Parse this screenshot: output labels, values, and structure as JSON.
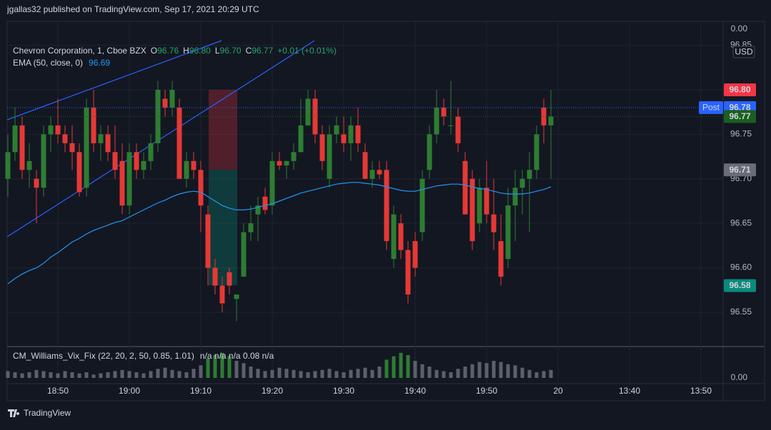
{
  "header": {
    "publisher": "jgallas32 published on TradingView.com, Sep 17, 2021 20:29 UTC"
  },
  "footer": {
    "brand": "TradingView"
  },
  "chart_data": {
    "type": "candlestick",
    "legend": {
      "symbol": "Chevron Corporation, 1, Cboe BZX",
      "o_key": "O",
      "o": "96.76",
      "h_key": "H",
      "h": "96.80",
      "l_key": "L",
      "l": "96.70",
      "c_key": "C",
      "c": "96.77",
      "change": "+0.01 (+0.01%)"
    },
    "currency": "USD",
    "top_label": "0.00",
    "x": [
      -7,
      -6,
      -5,
      -4,
      -3,
      -2,
      -1,
      0,
      1,
      2,
      3,
      4,
      5,
      6,
      7,
      8,
      9,
      10,
      11,
      12,
      13,
      14,
      15,
      16,
      17,
      18,
      19,
      20,
      21,
      22,
      23,
      24,
      25,
      26,
      27,
      28,
      29,
      30,
      31,
      32,
      33,
      34,
      35,
      36,
      37,
      38,
      39,
      40,
      41,
      42,
      43,
      44,
      45,
      46,
      47,
      48,
      49,
      50,
      51,
      52,
      53,
      54,
      55,
      56,
      57,
      58,
      59,
      60,
      61,
      62,
      63,
      64,
      65,
      66,
      67,
      68,
      69
    ],
    "open": [
      96.7,
      96.73,
      96.76,
      96.71,
      96.7,
      96.69,
      96.75,
      96.76,
      96.75,
      96.74,
      96.73,
      96.69,
      96.78,
      96.74,
      96.75,
      96.73,
      96.72,
      96.67,
      96.73,
      96.71,
      96.72,
      96.74,
      96.79,
      96.78,
      96.78,
      96.7,
      96.72,
      96.71,
      96.66,
      96.6,
      96.58,
      96.595,
      96.565,
      96.59,
      96.64,
      96.66,
      96.68,
      96.67,
      96.72,
      96.715,
      96.72,
      96.73,
      96.76,
      96.79,
      96.75,
      96.7,
      96.75,
      96.75,
      96.74,
      96.76,
      96.73,
      96.7,
      96.71,
      96.71,
      96.61,
      96.65,
      96.62,
      96.63,
      96.64,
      96.71,
      96.75,
      96.78,
      96.76,
      96.77,
      96.72,
      96.7,
      96.65,
      96.69,
      96.66,
      96.63,
      96.61,
      96.67,
      96.69,
      96.7,
      96.71,
      96.78,
      96.76
    ],
    "high": [
      96.75,
      96.78,
      96.77,
      96.74,
      96.71,
      96.76,
      96.77,
      96.79,
      96.76,
      96.76,
      96.74,
      96.79,
      96.8,
      96.76,
      96.76,
      96.76,
      96.74,
      96.74,
      96.74,
      96.73,
      96.75,
      96.81,
      96.8,
      96.81,
      96.79,
      96.73,
      96.73,
      96.72,
      96.67,
      96.61,
      96.59,
      96.6,
      96.57,
      96.65,
      96.67,
      96.68,
      96.69,
      96.73,
      96.73,
      96.72,
      96.74,
      96.79,
      96.8,
      96.8,
      96.76,
      96.76,
      96.77,
      96.77,
      96.77,
      96.78,
      96.74,
      96.72,
      96.72,
      96.72,
      96.67,
      96.66,
      96.63,
      96.64,
      96.71,
      96.76,
      96.8,
      96.79,
      96.81,
      96.78,
      96.73,
      96.71,
      96.7,
      96.72,
      96.7,
      96.66,
      96.69,
      96.71,
      96.71,
      96.73,
      96.76,
      96.79,
      96.8
    ],
    "low": [
      96.68,
      96.72,
      96.7,
      96.69,
      96.65,
      96.68,
      96.73,
      96.74,
      96.73,
      96.71,
      96.68,
      96.68,
      96.73,
      96.72,
      96.72,
      96.7,
      96.66,
      96.66,
      96.7,
      96.7,
      96.71,
      96.73,
      96.77,
      96.77,
      96.7,
      96.69,
      96.7,
      96.64,
      96.58,
      96.57,
      96.55,
      96.57,
      96.54,
      96.59,
      96.63,
      96.63,
      96.66,
      96.66,
      96.71,
      96.7,
      96.71,
      96.73,
      96.76,
      96.74,
      96.71,
      96.69,
      96.74,
      96.73,
      96.72,
      96.73,
      96.7,
      96.69,
      96.7,
      96.62,
      96.6,
      96.61,
      96.56,
      96.59,
      96.63,
      96.7,
      96.74,
      96.76,
      96.75,
      96.73,
      96.66,
      96.62,
      96.64,
      96.65,
      96.62,
      96.58,
      96.6,
      96.63,
      96.66,
      96.64,
      96.7,
      96.74,
      96.7
    ],
    "close": [
      96.73,
      96.76,
      96.71,
      96.72,
      96.69,
      96.75,
      96.76,
      96.75,
      96.74,
      96.73,
      96.685,
      96.78,
      96.74,
      96.75,
      96.73,
      96.71,
      96.67,
      96.73,
      96.71,
      96.72,
      96.74,
      96.8,
      96.78,
      96.8,
      96.7,
      96.72,
      96.71,
      96.67,
      96.6,
      96.58,
      96.56,
      96.58,
      96.57,
      96.64,
      96.65,
      96.67,
      96.665,
      96.72,
      96.715,
      96.72,
      96.73,
      96.76,
      96.79,
      96.75,
      96.72,
      96.75,
      96.76,
      96.74,
      96.76,
      96.74,
      96.7,
      96.71,
      96.705,
      96.63,
      96.66,
      96.62,
      96.57,
      96.6,
      96.7,
      96.75,
      96.78,
      96.77,
      96.76,
      96.74,
      96.66,
      96.63,
      96.69,
      96.66,
      96.64,
      96.59,
      96.67,
      96.69,
      96.7,
      96.71,
      96.75,
      96.76,
      96.77
    ],
    "up_color": "#2e7d32",
    "down_color": "#e53935",
    "ema": {
      "name": "EMA (50, close, 0)",
      "last": "96.69",
      "color": "#2196f3",
      "values": [
        96.582,
        96.588,
        96.593,
        96.597,
        96.6,
        96.605,
        96.612,
        96.617,
        96.623,
        96.629,
        96.633,
        96.638,
        96.642,
        96.645,
        96.648,
        96.651,
        96.653,
        96.657,
        96.661,
        96.665,
        96.669,
        96.673,
        96.676,
        96.68,
        96.683,
        96.685,
        96.686,
        96.685,
        96.68,
        96.675,
        96.67,
        96.667,
        96.665,
        96.665,
        96.666,
        96.668,
        96.67,
        96.672,
        96.675,
        96.678,
        96.681,
        96.684,
        96.686,
        96.688,
        96.69,
        96.692,
        96.694,
        96.695,
        96.696,
        96.696,
        96.695,
        96.694,
        96.693,
        96.691,
        96.689,
        96.687,
        96.686,
        96.686,
        96.688,
        96.69,
        96.692,
        96.693,
        96.694,
        96.694,
        96.693,
        96.691,
        96.689,
        96.688,
        96.686,
        96.684,
        96.683,
        96.683,
        96.683,
        96.684,
        96.686,
        96.688,
        96.691
      ]
    },
    "xlim": [
      -7.1,
      93.1
    ],
    "xticks": [
      {
        "value": 0,
        "label": "18:50"
      },
      {
        "value": 10,
        "label": "19:00"
      },
      {
        "value": 20,
        "label": "19:10"
      },
      {
        "value": 30,
        "label": "19:20"
      },
      {
        "value": 40,
        "label": "19:30"
      },
      {
        "value": 50,
        "label": "19:40"
      },
      {
        "value": 60,
        "label": "19:50"
      },
      {
        "value": 70,
        "label": "20"
      },
      {
        "value": 80,
        "label": "13:40"
      },
      {
        "value": 90,
        "label": "13:50"
      }
    ],
    "ylim": [
      96.5123,
      96.8769
    ],
    "yticks": [
      96.55,
      {
        "value": 96.6,
        "label": "96.60"
      },
      96.65,
      {
        "value": 96.7,
        "label": "96.70"
      },
      96.75,
      {
        "value": 96.8,
        "label": "96.80"
      },
      96.85
    ],
    "grid": true,
    "price_markers": [
      {
        "value": 96.8,
        "label": "96.80",
        "color": "#f23645"
      },
      {
        "value": 96.78,
        "color": "#2962ff",
        "tag": "Post",
        "line": "dotted"
      },
      {
        "value": 96.77,
        "color": "#1b5e20",
        "line": "dotted"
      },
      {
        "value": 96.71,
        "color": "#6a6d78"
      },
      {
        "value": 96.58,
        "color": "#0b8a7c"
      }
    ]
  },
  "indicator": {
    "name": "CM_Williams_Vix_Fix (22, 20, 2, 50, 0.85, 1.01)",
    "readout": "n/a  n/a  n/a  0.08  n/a",
    "ylim": [
      0,
      0.05
    ],
    "yticks": [
      {
        "value": 0,
        "label": "0.00"
      }
    ],
    "values": [
      0.012,
      0.01,
      0.008,
      0.01,
      0.014,
      0.012,
      0.01,
      0.008,
      0.012,
      0.01,
      0.008,
      0.01,
      0.006,
      0.008,
      0.01,
      0.012,
      0.014,
      0.012,
      0.01,
      0.008,
      0.012,
      0.016,
      0.018,
      0.014,
      0.012,
      0.01,
      0.016,
      0.022,
      0.034,
      0.04,
      0.044,
      0.038,
      0.03,
      0.026,
      0.02,
      0.016,
      0.012,
      0.014,
      0.018,
      0.016,
      0.014,
      0.012,
      0.01,
      0.012,
      0.014,
      0.016,
      0.012,
      0.01,
      0.014,
      0.016,
      0.018,
      0.014,
      0.02,
      0.032,
      0.038,
      0.044,
      0.04,
      0.03,
      0.024,
      0.02,
      0.014,
      0.012,
      0.01,
      0.016,
      0.02,
      0.024,
      0.028,
      0.026,
      0.03,
      0.028,
      0.024,
      0.022,
      0.018,
      0.014,
      0.01,
      0.012,
      0.014
    ],
    "colors": [
      "#5d606b",
      "#5d606b",
      "#5d606b",
      "#5d606b",
      "#5d606b",
      "#5d606b",
      "#5d606b",
      "#5d606b",
      "#5d606b",
      "#5d606b",
      "#5d606b",
      "#5d606b",
      "#5d606b",
      "#5d606b",
      "#5d606b",
      "#5d606b",
      "#5d606b",
      "#5d606b",
      "#5d606b",
      "#5d606b",
      "#5d606b",
      "#5d606b",
      "#5d606b",
      "#5d606b",
      "#5d606b",
      "#5d606b",
      "#5d606b",
      "#5d606b",
      "#2e7d32",
      "#2e7d32",
      "#2e7d32",
      "#2e7d32",
      "#5d606b",
      "#5d606b",
      "#5d606b",
      "#5d606b",
      "#5d606b",
      "#5d606b",
      "#5d606b",
      "#5d606b",
      "#5d606b",
      "#5d606b",
      "#5d606b",
      "#5d606b",
      "#5d606b",
      "#5d606b",
      "#5d606b",
      "#5d606b",
      "#5d606b",
      "#5d606b",
      "#5d606b",
      "#5d606b",
      "#5d606b",
      "#2e7d32",
      "#2e7d32",
      "#2e7d32",
      "#2e7d32",
      "#5d606b",
      "#5d606b",
      "#5d606b",
      "#5d606b",
      "#5d606b",
      "#5d606b",
      "#5d606b",
      "#5d606b",
      "#5d606b",
      "#5d606b",
      "#5d606b",
      "#5d606b",
      "#5d606b",
      "#5d606b",
      "#5d606b",
      "#5d606b",
      "#5d606b",
      "#5d606b",
      "#5d606b",
      "#5d606b"
    ]
  }
}
